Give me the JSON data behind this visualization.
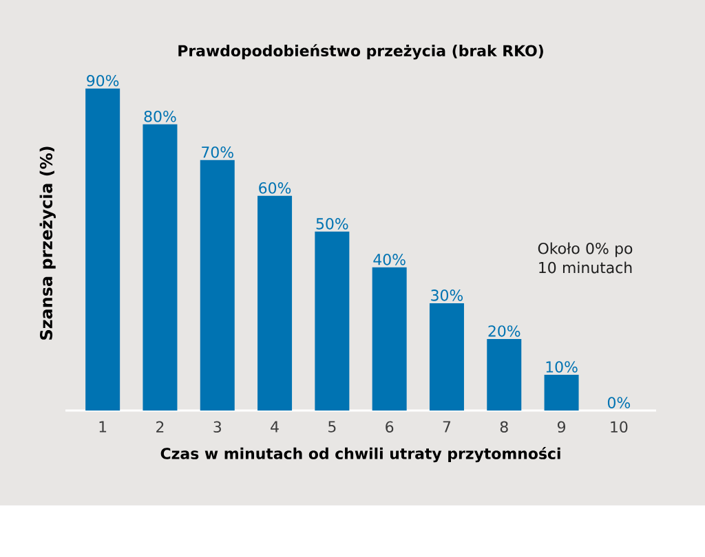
{
  "chart_data": {
    "type": "bar",
    "title": "Prawdopodobieństwo przeżycia (brak RKO)",
    "xlabel": "Czas w minutach od chwili utraty przytomności",
    "ylabel": "Szansa przeżycia (%)",
    "categories": [
      "1",
      "2",
      "3",
      "4",
      "5",
      "6",
      "7",
      "8",
      "9",
      "10"
    ],
    "values": [
      90,
      80,
      70,
      60,
      50,
      40,
      30,
      20,
      10,
      0
    ],
    "value_labels": [
      "90%",
      "80%",
      "70%",
      "60%",
      "50%",
      "40%",
      "30%",
      "20%",
      "10%",
      "0%"
    ],
    "color": "#0073b2",
    "tick_labels": "x",
    "grid": false,
    "annotations": [
      "Około 0% po 10 minutach"
    ]
  }
}
